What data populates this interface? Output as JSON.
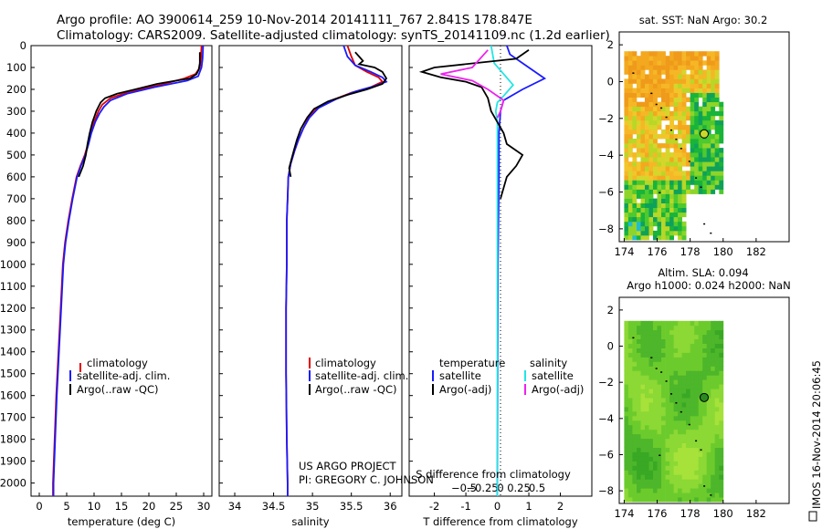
{
  "header": {
    "line1": "Argo profile: AO 3900614_259 10-Nov-2014 20141111_767 2.841S 178.847E",
    "line2": "Climatology: CARS2009. Satellite-adjusted climatology: synTS_20141109.nc (1.2d earlier)"
  },
  "credits": {
    "line1": "US ARGO PROJECT",
    "line2": "PI: GREGORY C. JOHNSON"
  },
  "sidebar_stamp": "IMOS 16-Nov-2014 20:06:45",
  "colors": {
    "climatology": "#e00000",
    "satellite": "#1a1aff",
    "argo": "#000000",
    "sal_satellite": "#22e5e5",
    "sal_argo": "#ee22ee",
    "float_marker": "#2b8a1f"
  },
  "chart_data": [
    {
      "type": "line",
      "name": "temperature-profile",
      "xlabel": "temperature (deg C)",
      "xlim": [
        -1.5,
        31.5
      ],
      "xticks": [
        0,
        5,
        10,
        15,
        20,
        25,
        30
      ],
      "ylim": [
        0,
        2060
      ],
      "yticks": [
        0,
        100,
        200,
        300,
        400,
        500,
        600,
        700,
        800,
        900,
        1000,
        1100,
        1200,
        1300,
        1400,
        1500,
        1600,
        1700,
        1800,
        1900,
        2000
      ],
      "legend": [
        "climatology",
        "satellite-adj. clim.",
        "Argo(..raw -QC)"
      ],
      "legend_position": "lower-center",
      "series": [
        {
          "name": "climatology",
          "color": "#e00000",
          "points": [
            [
              29.6,
              0
            ],
            [
              29.5,
              60
            ],
            [
              29.3,
              100
            ],
            [
              28.5,
              130
            ],
            [
              26.5,
              150
            ],
            [
              22,
              180
            ],
            [
              16.5,
              210
            ],
            [
              13,
              240
            ],
            [
              11.5,
              270
            ],
            [
              10.8,
              300
            ],
            [
              10,
              350
            ],
            [
              9.4,
              400
            ],
            [
              8.9,
              450
            ],
            [
              8.3,
              500
            ],
            [
              7.5,
              550
            ],
            [
              6.8,
              600
            ],
            [
              6,
              700
            ],
            [
              5.3,
              800
            ],
            [
              4.7,
              900
            ],
            [
              4.3,
              1000
            ],
            [
              3.9,
              1200
            ],
            [
              3.5,
              1400
            ],
            [
              3.1,
              1600
            ],
            [
              2.8,
              1800
            ],
            [
              2.5,
              2000
            ],
            [
              2.5,
              2060
            ]
          ]
        },
        {
          "name": "satellite-adj. clim.",
          "color": "#1a1aff",
          "points": [
            [
              29.9,
              0
            ],
            [
              29.8,
              60
            ],
            [
              29.6,
              100
            ],
            [
              29,
              140
            ],
            [
              27,
              160
            ],
            [
              21,
              190
            ],
            [
              16,
              220
            ],
            [
              13,
              250
            ],
            [
              11.8,
              280
            ],
            [
              11,
              310
            ],
            [
              10.2,
              350
            ],
            [
              9.5,
              400
            ],
            [
              9,
              450
            ],
            [
              8.4,
              500
            ],
            [
              7.6,
              550
            ],
            [
              6.9,
              600
            ],
            [
              6.1,
              700
            ],
            [
              5.4,
              800
            ],
            [
              4.8,
              900
            ],
            [
              4.4,
              1000
            ],
            [
              4,
              1200
            ],
            [
              3.6,
              1400
            ],
            [
              3.2,
              1600
            ],
            [
              2.9,
              1800
            ],
            [
              2.6,
              2000
            ],
            [
              2.6,
              2060
            ]
          ]
        },
        {
          "name": "Argo(..raw -QC)",
          "color": "#000000",
          "points": [
            [
              29.3,
              30
            ],
            [
              29.3,
              80
            ],
            [
              29.1,
              110
            ],
            [
              28.7,
              130
            ],
            [
              27.5,
              150
            ],
            [
              25,
              160
            ],
            [
              21.5,
              175
            ],
            [
              17.5,
              200
            ],
            [
              14.2,
              220
            ],
            [
              12,
              240
            ],
            [
              11.2,
              260
            ],
            [
              10.4,
              300
            ],
            [
              9.7,
              350
            ],
            [
              9.2,
              400
            ],
            [
              8.8,
              450
            ],
            [
              8.5,
              500
            ],
            [
              8,
              550
            ],
            [
              7.2,
              600
            ]
          ]
        }
      ]
    },
    {
      "type": "line",
      "name": "salinity-profile",
      "xlabel": "salinity",
      "xlim": [
        33.8,
        36.15
      ],
      "xticks": [
        34,
        34.5,
        35,
        35.5,
        36
      ],
      "ylim": [
        0,
        2060
      ],
      "legend": [
        "climatology",
        "satellite-adj. clim.",
        "Argo(..raw -QC)"
      ],
      "legend_position": "lower-center",
      "series": [
        {
          "name": "climatology",
          "color": "#e00000",
          "points": [
            [
              35.45,
              0
            ],
            [
              35.5,
              50
            ],
            [
              35.55,
              90
            ],
            [
              35.7,
              120
            ],
            [
              35.85,
              145
            ],
            [
              35.9,
              165
            ],
            [
              35.75,
              190
            ],
            [
              35.5,
              215
            ],
            [
              35.25,
              250
            ],
            [
              35.05,
              290
            ],
            [
              34.95,
              330
            ],
            [
              34.88,
              380
            ],
            [
              34.82,
              430
            ],
            [
              34.77,
              480
            ],
            [
              34.72,
              540
            ],
            [
              34.69,
              600
            ],
            [
              34.68,
              700
            ],
            [
              34.67,
              800
            ],
            [
              34.67,
              1000
            ],
            [
              34.66,
              1200
            ],
            [
              34.66,
              1500
            ],
            [
              34.67,
              1800
            ],
            [
              34.68,
              2000
            ],
            [
              34.68,
              2060
            ]
          ]
        },
        {
          "name": "satellite-adj. clim.",
          "color": "#1a1aff",
          "points": [
            [
              35.4,
              0
            ],
            [
              35.45,
              50
            ],
            [
              35.55,
              90
            ],
            [
              35.75,
              120
            ],
            [
              35.9,
              145
            ],
            [
              35.95,
              165
            ],
            [
              35.8,
              185
            ],
            [
              35.55,
              210
            ],
            [
              35.3,
              245
            ],
            [
              35.08,
              285
            ],
            [
              34.96,
              330
            ],
            [
              34.88,
              380
            ],
            [
              34.82,
              430
            ],
            [
              34.77,
              480
            ],
            [
              34.72,
              540
            ],
            [
              34.69,
              600
            ],
            [
              34.68,
              700
            ],
            [
              34.67,
              800
            ],
            [
              34.67,
              1000
            ],
            [
              34.66,
              1200
            ],
            [
              34.66,
              1500
            ],
            [
              34.67,
              1800
            ],
            [
              34.68,
              2000
            ],
            [
              34.68,
              2060
            ]
          ]
        },
        {
          "name": "Argo(..raw -QC)",
          "color": "#000000",
          "points": [
            [
              35.55,
              30
            ],
            [
              35.6,
              50
            ],
            [
              35.65,
              70
            ],
            [
              35.6,
              85
            ],
            [
              35.8,
              100
            ],
            [
              35.9,
              120
            ],
            [
              35.95,
              150
            ],
            [
              35.9,
              175
            ],
            [
              35.7,
              200
            ],
            [
              35.45,
              225
            ],
            [
              35.2,
              255
            ],
            [
              35.02,
              290
            ],
            [
              34.93,
              330
            ],
            [
              34.85,
              380
            ],
            [
              34.8,
              430
            ],
            [
              34.76,
              480
            ],
            [
              34.73,
              520
            ],
            [
              34.7,
              560
            ],
            [
              34.72,
              600
            ]
          ]
        }
      ]
    },
    {
      "type": "line",
      "name": "difference-profile",
      "xlabel": "T difference from climatology",
      "xlabel2": "S difference from climatology",
      "xlim": [
        -2.8,
        3.0
      ],
      "xticks": [
        -2,
        -1,
        0,
        1,
        2
      ],
      "xticks2": [
        -0.5,
        -0.25,
        0,
        0.25,
        0.5
      ],
      "ylim": [
        0,
        2060
      ],
      "legend": {
        "temperature": "temperature",
        "salinity": "salinity",
        "satellite": "satellite",
        "argo": "Argo(-adj)"
      },
      "legend_position": "lower-center",
      "series": [
        {
          "name": "temperature satellite",
          "color": "#1a1aff",
          "points": [
            [
              0.3,
              0
            ],
            [
              0.4,
              40
            ],
            [
              0.8,
              80
            ],
            [
              1.5,
              150
            ],
            [
              0.8,
              200
            ],
            [
              0.2,
              250
            ],
            [
              0.1,
              300
            ],
            [
              0.05,
              400
            ],
            [
              0.05,
              600
            ],
            [
              0.02,
              1000
            ],
            [
              0.01,
              1500
            ],
            [
              0,
              2060
            ]
          ]
        },
        {
          "name": "salinity satellite",
          "color": "#22e5e5",
          "points": [
            [
              -0.2,
              0
            ],
            [
              -0.15,
              40
            ],
            [
              -0.1,
              80
            ],
            [
              0.5,
              180
            ],
            [
              0.2,
              230
            ],
            [
              0,
              260
            ],
            [
              -0.05,
              300
            ],
            [
              0,
              350
            ],
            [
              0,
              500
            ],
            [
              0,
              1000
            ],
            [
              0,
              2060
            ]
          ]
        },
        {
          "name": "temperature argo",
          "color": "#000000",
          "points": [
            [
              1.0,
              20
            ],
            [
              0.6,
              60
            ],
            [
              -2.0,
              100
            ],
            [
              -2.4,
              120
            ],
            [
              -1.8,
              145
            ],
            [
              -1.0,
              165
            ],
            [
              -0.5,
              190
            ],
            [
              -0.3,
              240
            ],
            [
              -0.2,
              300
            ],
            [
              0,
              350
            ],
            [
              0.2,
              400
            ],
            [
              0.3,
              450
            ],
            [
              0.8,
              500
            ],
            [
              0.6,
              550
            ],
            [
              0.3,
              600
            ],
            [
              0.1,
              700
            ]
          ]
        },
        {
          "name": "salinity argo",
          "color": "#ee22ee",
          "points": [
            [
              -0.3,
              20
            ],
            [
              -0.8,
              100
            ],
            [
              -1.8,
              130
            ],
            [
              -0.8,
              160
            ],
            [
              -0.3,
              200
            ],
            [
              0.2,
              250
            ],
            [
              0.1,
              300
            ],
            [
              0,
              330
            ]
          ]
        }
      ]
    },
    {
      "type": "heatmap",
      "name": "sst-map",
      "title": "sat. SST: NaN Argo: 30.2",
      "xlim": [
        173.7,
        184
      ],
      "xticks": [
        174,
        176,
        178,
        180,
        182
      ],
      "ylim": [
        -8.7,
        2.7
      ],
      "yticks": [
        2,
        0,
        -2,
        -4,
        -6,
        -8
      ],
      "float_position": [
        178.85,
        -2.84
      ],
      "palette": [
        "#ef9a1a",
        "#f3a81f",
        "#f6b727",
        "#f2c62a",
        "#d5d62c",
        "#b8d727",
        "#8ed42a",
        "#4ec92e",
        "#18b43b",
        "#0fa15a",
        "#20bcd0"
      ]
    },
    {
      "type": "heatmap",
      "name": "sla-map",
      "title": "Altim. SLA: 0.094",
      "subtitle": "Argo h1000: 0.024 h2000: NaN",
      "xlim": [
        173.7,
        184
      ],
      "xticks": [
        174,
        176,
        178,
        180,
        182
      ],
      "ylim": [
        -8.7,
        2.7
      ],
      "yticks": [
        2,
        0,
        -2,
        -4,
        -6,
        -8
      ],
      "float_position": [
        178.85,
        -2.84
      ],
      "palette": [
        "#a6e23a",
        "#8cd834",
        "#6ccb2c",
        "#4db62a",
        "#39a824"
      ]
    }
  ]
}
